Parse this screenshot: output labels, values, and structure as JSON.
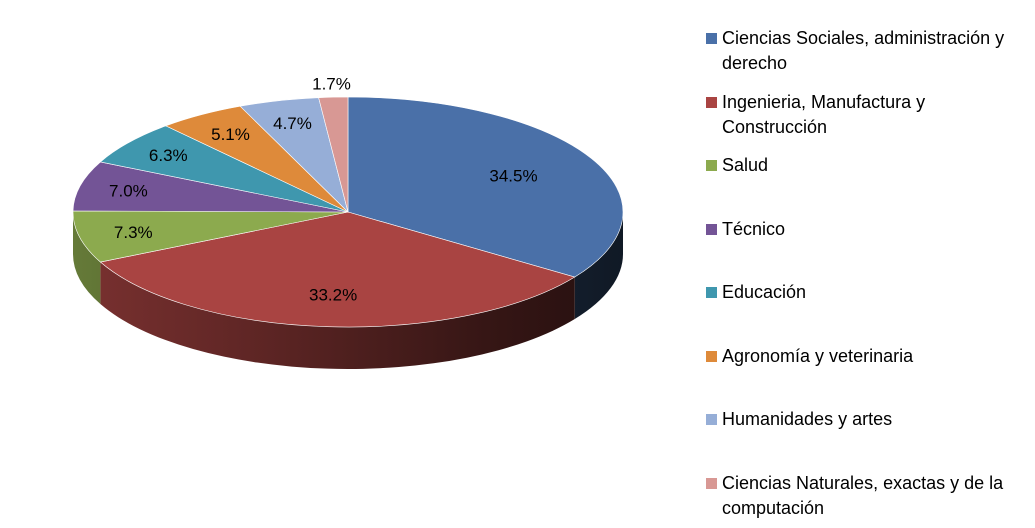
{
  "chart_data": {
    "type": "pie",
    "title": "",
    "categories": [
      "Ciencias Sociales, administración y derecho",
      "Ingenieria, Manufactura y Construcción",
      "Salud",
      "Técnico",
      "Educación",
      "Agronomía y veterinaria",
      "Humanidades y artes",
      "Ciencias Naturales, exactas y de la computación"
    ],
    "values": [
      34.5,
      33.2,
      7.3,
      7.0,
      6.3,
      5.1,
      4.7,
      1.7
    ],
    "labels": [
      "34.5%",
      "33.2%",
      "7.3%",
      "7.0%",
      "6.3%",
      "5.1%",
      "4.7%",
      "1.7%"
    ],
    "colors": [
      "#4A70A8",
      "#A94442",
      "#8CAA4E",
      "#735496",
      "#3F97AE",
      "#DE8A3A",
      "#96AED7",
      "#D89894"
    ],
    "legend_position": "right",
    "style": "3d"
  }
}
